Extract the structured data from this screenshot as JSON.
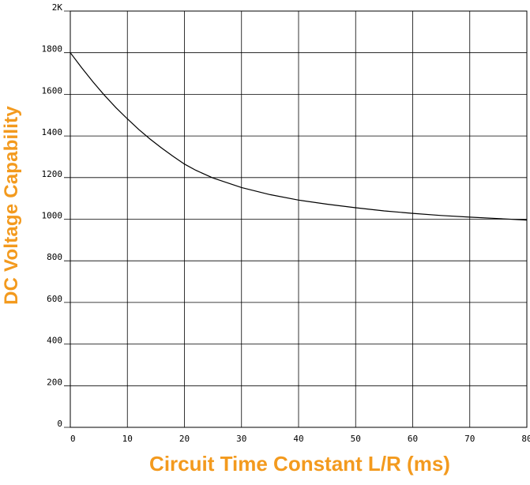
{
  "chart_data": {
    "type": "line",
    "title": "",
    "xlabel": "Circuit Time Constant L/R (ms)",
    "ylabel": "DC Voltage Capability",
    "xlim": [
      0,
      80
    ],
    "ylim": [
      0,
      2000
    ],
    "x_ticks": [
      0,
      10,
      20,
      30,
      40,
      50,
      60,
      70,
      80
    ],
    "x_tick_labels": [
      "0",
      "10",
      "20",
      "30",
      "40",
      "50",
      "60",
      "70",
      "80"
    ],
    "y_ticks": [
      0,
      200,
      400,
      600,
      800,
      1000,
      1200,
      1400,
      1600,
      1800,
      2000
    ],
    "y_tick_labels": [
      "0",
      "200",
      "400",
      "600",
      "800",
      "1000",
      "1200",
      "1400",
      "1600",
      "1800",
      "2K"
    ],
    "grid": true,
    "line_color": "#000000",
    "label_color": "#f39a1e",
    "series": [
      {
        "x": [
          0,
          2,
          4,
          6,
          8,
          10,
          12,
          14,
          16,
          18,
          20,
          22,
          25,
          30,
          35,
          40,
          45,
          50,
          55,
          60,
          65,
          70,
          75,
          80
        ],
        "values": [
          1800,
          1727,
          1659,
          1595,
          1536,
          1482,
          1431,
          1385,
          1342,
          1302,
          1265,
          1235,
          1198,
          1152,
          1118,
          1092,
          1072,
          1055,
          1040,
          1028,
          1018,
          1010,
          1003,
          996
        ]
      }
    ]
  }
}
